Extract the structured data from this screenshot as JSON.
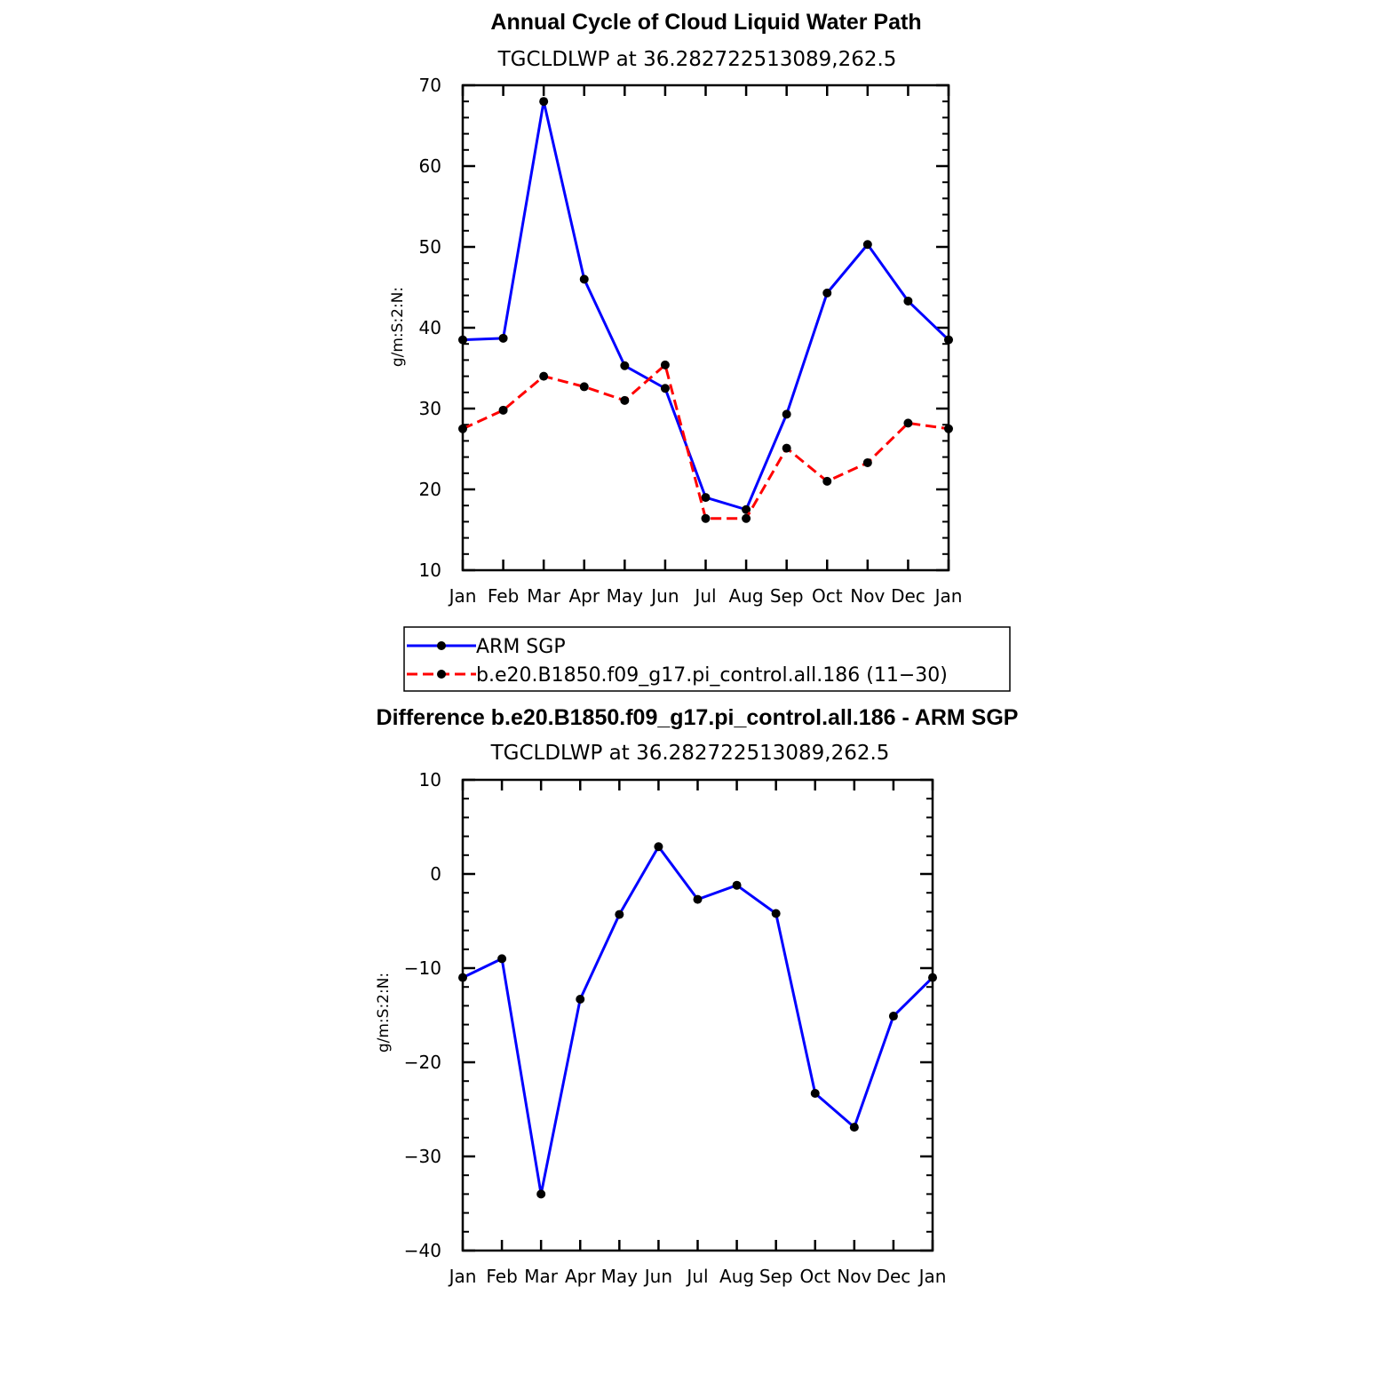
{
  "chart_data": [
    {
      "type": "line",
      "title": "Annual Cycle of Cloud Liquid Water Path",
      "subtitle": "TGCLDLWP  at  36.282722513089,262.5",
      "ylabel": "g/m:S:2:N:",
      "xlabel": "",
      "ylim": [
        10,
        70
      ],
      "yticks": [
        10,
        20,
        30,
        40,
        50,
        60,
        70
      ],
      "categories": [
        "Jan",
        "Feb",
        "Mar",
        "Apr",
        "May",
        "Jun",
        "Jul",
        "Aug",
        "Sep",
        "Oct",
        "Nov",
        "Dec",
        "Jan"
      ],
      "grid": false,
      "legend_position": "bottom",
      "series": [
        {
          "name": "ARM SGP",
          "color": "#0000ff",
          "dash": "solid",
          "values": [
            38.5,
            38.7,
            68.0,
            46.0,
            35.3,
            32.5,
            19.0,
            17.5,
            29.3,
            44.3,
            50.3,
            43.3,
            38.5
          ]
        },
        {
          "name": "b.e20.B1850.f09_g17.pi_control.all.186 (11−30)",
          "color": "#ff0000",
          "dash": "dashed",
          "values": [
            27.5,
            29.8,
            34.0,
            32.7,
            31.0,
            35.4,
            16.4,
            16.4,
            25.1,
            21.0,
            23.3,
            28.2,
            27.5
          ]
        }
      ]
    },
    {
      "type": "line",
      "title": "Difference b.e20.B1850.f09_g17.pi_control.all.186 - ARM SGP",
      "subtitle": "TGCLDLWP  at  36.282722513089,262.5",
      "ylabel": "g/m:S:2:N:",
      "xlabel": "",
      "ylim": [
        -40,
        10
      ],
      "yticks": [
        -40,
        -30,
        -20,
        -10,
        0,
        10
      ],
      "ytick_labels": [
        "−40",
        "−30",
        "−20",
        "−10",
        "0",
        "10"
      ],
      "categories": [
        "Jan",
        "Feb",
        "Mar",
        "Apr",
        "May",
        "Jun",
        "Jul",
        "Aug",
        "Sep",
        "Oct",
        "Nov",
        "Dec",
        "Jan"
      ],
      "grid": false,
      "series": [
        {
          "color": "#0000ff",
          "dash": "solid",
          "values": [
            -11.0,
            -9.0,
            -34.0,
            -13.3,
            -4.3,
            2.9,
            -2.7,
            -1.2,
            -4.2,
            -23.3,
            -26.9,
            -15.1,
            -11.0
          ]
        }
      ]
    }
  ]
}
